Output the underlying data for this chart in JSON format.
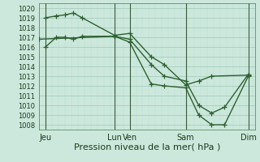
{
  "xlabel": "Pression niveau de la mer( hPa )",
  "bg_color": "#cce8dc",
  "grid_color_major": "#a0c8b8",
  "grid_color_minor": "#b8dcd0",
  "line_color": "#2d6030",
  "vline_color": "#3a5a3a",
  "ylim": [
    1007.5,
    1020.5
  ],
  "yticks": [
    1008,
    1009,
    1010,
    1011,
    1012,
    1013,
    1014,
    1015,
    1016,
    1017,
    1018,
    1019,
    1020
  ],
  "xlim": [
    0,
    100
  ],
  "xtick_positions": [
    3,
    35,
    42,
    68,
    97
  ],
  "xtick_labels": [
    "Jeu",
    "Lun",
    "Ven",
    "Sam",
    "Dim"
  ],
  "vline_positions": [
    3,
    35,
    42,
    68,
    97
  ],
  "series1_x": [
    3,
    8,
    12,
    16,
    20,
    35,
    42,
    52,
    58,
    68,
    74,
    80,
    97
  ],
  "series1_y": [
    1019.0,
    1019.2,
    1019.3,
    1019.5,
    1019.0,
    1017.2,
    1017.4,
    1015.0,
    1014.2,
    1012.1,
    1012.5,
    1013.0,
    1013.1
  ],
  "series2_x": [
    3,
    8,
    12,
    16,
    20,
    35,
    42,
    52,
    58,
    68,
    74,
    80,
    86,
    97
  ],
  "series2_y": [
    1016.0,
    1017.0,
    1017.0,
    1016.8,
    1017.1,
    1017.1,
    1016.5,
    1012.2,
    1012.0,
    1011.8,
    1009.0,
    1008.0,
    1008.0,
    1013.0
  ],
  "series3_x": [
    0,
    35,
    42,
    52,
    58,
    68,
    74,
    80,
    86,
    97
  ],
  "series3_y": [
    1016.8,
    1017.1,
    1016.8,
    1014.2,
    1013.0,
    1012.5,
    1010.0,
    1009.2,
    1009.8,
    1013.2
  ],
  "marker": "+",
  "markersize": 4,
  "linewidth": 1.0,
  "ytick_fontsize": 6,
  "xtick_fontsize": 7,
  "xlabel_fontsize": 8
}
